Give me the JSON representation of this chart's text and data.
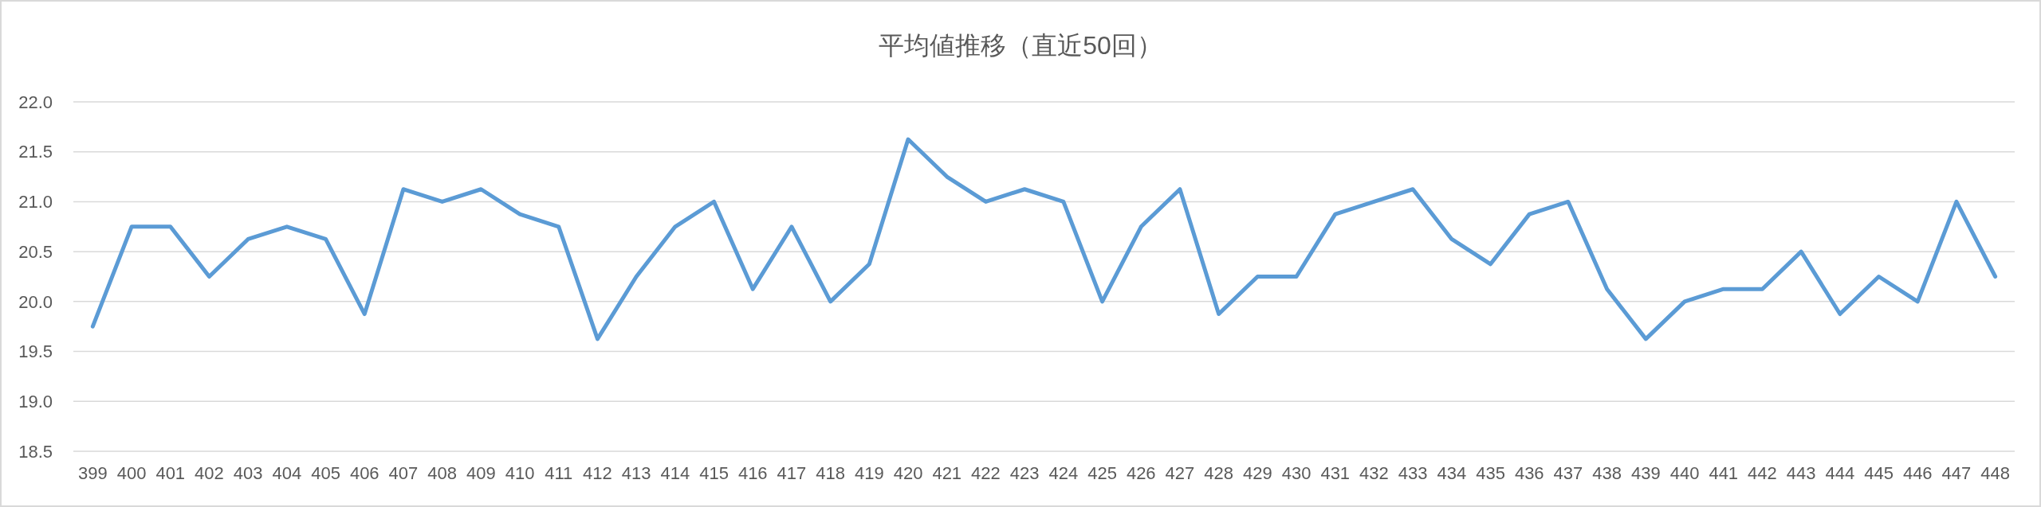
{
  "chart_data": {
    "type": "line",
    "title": "平均値推移（直近50回）",
    "categories": [
      "399",
      "400",
      "401",
      "402",
      "403",
      "404",
      "405",
      "406",
      "407",
      "408",
      "409",
      "410",
      "411",
      "412",
      "413",
      "414",
      "415",
      "416",
      "417",
      "418",
      "419",
      "420",
      "421",
      "422",
      "423",
      "424",
      "425",
      "426",
      "427",
      "428",
      "429",
      "430",
      "431",
      "432",
      "433",
      "434",
      "435",
      "436",
      "437",
      "438",
      "439",
      "440",
      "441",
      "442",
      "443",
      "444",
      "445",
      "446",
      "447",
      "448"
    ],
    "series": [
      {
        "color": "#5b9bd5",
        "values": [
          19.75,
          20.75,
          20.75,
          20.25,
          20.625,
          20.75,
          20.625,
          19.875,
          21.125,
          21.0,
          21.125,
          20.875,
          20.75,
          19.625,
          20.25,
          20.75,
          21.0,
          20.125,
          20.75,
          20.0,
          20.375,
          21.625,
          21.25,
          21.0,
          21.125,
          21.0,
          20.0,
          20.75,
          21.125,
          19.875,
          20.25,
          20.25,
          20.875,
          21.0,
          21.125,
          20.625,
          20.375,
          20.875,
          21.0,
          20.125,
          19.625,
          20.0,
          20.125,
          20.125,
          20.5,
          19.875,
          20.25,
          20.0,
          21.0,
          20.25
        ]
      }
    ],
    "ylim": [
      18.5,
      22.0
    ],
    "yticks": [
      {
        "value": 18.5,
        "label": "18.5"
      },
      {
        "value": 19.0,
        "label": "19.0"
      },
      {
        "value": 19.5,
        "label": "19.5"
      },
      {
        "value": 20.0,
        "label": "20.0"
      },
      {
        "value": 20.5,
        "label": "20.5"
      },
      {
        "value": 21.0,
        "label": "21.0"
      },
      {
        "value": 21.5,
        "label": "21.5"
      },
      {
        "value": 22.0,
        "label": "22.0"
      }
    ],
    "grid": "y",
    "marker": "none",
    "line_style": "solid"
  }
}
